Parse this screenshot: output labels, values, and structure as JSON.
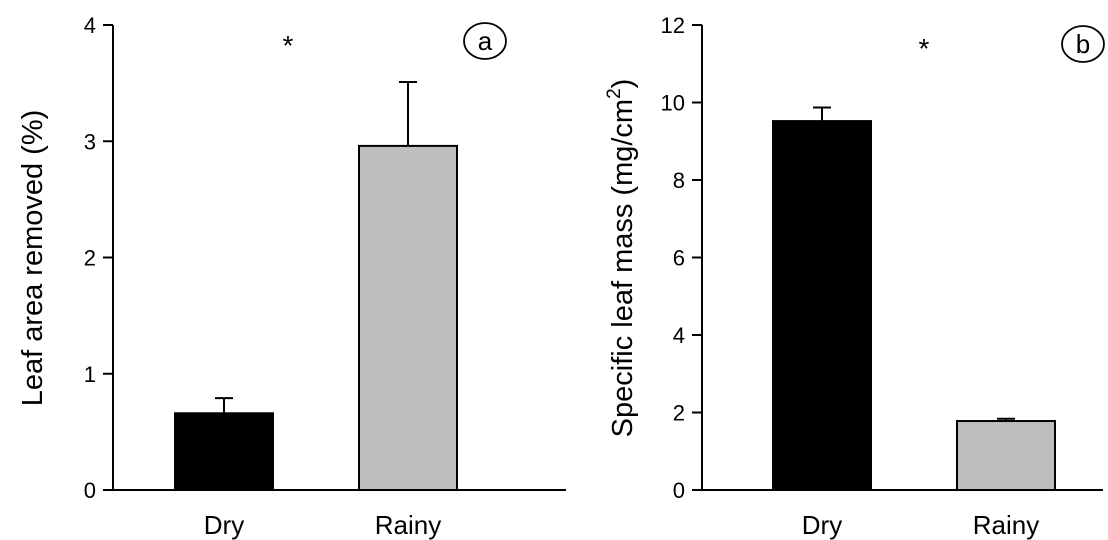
{
  "chart_data": [
    {
      "type": "bar",
      "panel_label": "a",
      "categories": [
        "Dry",
        "Rainy"
      ],
      "values": [
        0.66,
        2.96
      ],
      "errors": [
        0.13,
        0.55
      ],
      "colors": [
        "#000000",
        "#bebebe"
      ],
      "ylabel": "Leaf area removed (%)",
      "xlabel": "",
      "ylim": [
        0,
        4
      ],
      "yticks": [
        0,
        1,
        2,
        3,
        4
      ],
      "yticks_labels": [
        "0",
        "1",
        "2",
        "3",
        "4"
      ],
      "significance": "*",
      "grid": false
    },
    {
      "type": "bar",
      "panel_label": "b",
      "categories": [
        "Dry",
        "Rainy"
      ],
      "values": [
        9.52,
        1.78
      ],
      "errors": [
        0.35,
        0.06
      ],
      "colors": [
        "#000000",
        "#bebebe"
      ],
      "ylabel": "Specific leaf mass (mg/cm",
      "ylabel_superscript": "2",
      "ylabel_suffix": ")",
      "xlabel": "",
      "ylim": [
        0,
        12
      ],
      "yticks": [
        0,
        2,
        4,
        6,
        8,
        10,
        12
      ],
      "yticks_labels": [
        "0",
        "2",
        "4",
        "6",
        "8",
        "10",
        "12"
      ],
      "significance": "*",
      "grid": false
    }
  ]
}
